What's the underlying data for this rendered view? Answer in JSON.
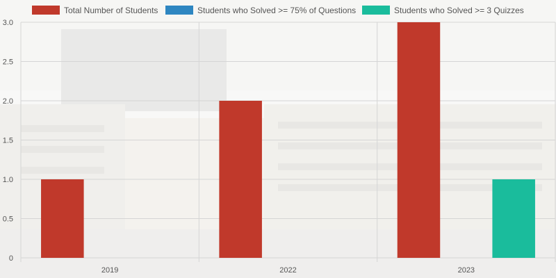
{
  "chart_data": {
    "type": "bar",
    "categories": [
      "2019",
      "2022",
      "2023"
    ],
    "series": [
      {
        "name": "Total Number of Students",
        "color": "#c0392b",
        "values": [
          1,
          2,
          3
        ]
      },
      {
        "name": "Students who Solved >= 75% of Questions",
        "color": "#2e86c1",
        "values": [
          0,
          0,
          0
        ]
      },
      {
        "name": "Students who Solved >= 3 Quizzes",
        "color": "#1abc9c",
        "values": [
          0,
          0,
          1
        ]
      }
    ],
    "ylim": [
      0,
      3
    ],
    "yticks": [
      "0",
      "0.5",
      "1.0",
      "1.5",
      "2.0",
      "2.5",
      "3.0"
    ],
    "ytick_values": [
      0,
      0.5,
      1,
      1.5,
      2,
      2.5,
      3
    ],
    "grid": true,
    "legend_position": "top"
  }
}
